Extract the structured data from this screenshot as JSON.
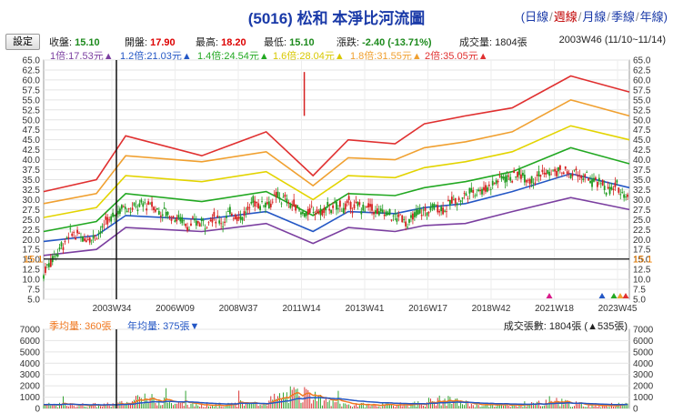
{
  "header": {
    "title": "(5016) 松和 本淨比河流圖",
    "periods": [
      "日線",
      "週線",
      "月線",
      "季線",
      "年線"
    ],
    "active_period": "週線",
    "settings_label": "設定"
  },
  "quote": {
    "open_label": "收盤:",
    "open_value": "15.10",
    "start_label": "開盤:",
    "start_value": "17.90",
    "high_label": "最高:",
    "high_value": "18.20",
    "low_label": "最低:",
    "low_value": "15.10",
    "change_label": "漲跌:",
    "change_value": "-2.40",
    "change_pct": "(-13.71%)",
    "volume_label": "成交量:",
    "volume_value": "1804張",
    "week_label": "2003W46 (11/10~11/14)"
  },
  "levels": [
    {
      "text": "1倍:17.53元▲",
      "color": "#7b3fa0"
    },
    {
      "text": "1.2倍:21.03元▲",
      "color": "#2457c5"
    },
    {
      "text": "1.4倍:24.54元▲",
      "color": "#22a822"
    },
    {
      "text": "1.6倍:28.04元▲",
      "color": "#e3d400"
    },
    {
      "text": "1.8倍:31.55元▲",
      "color": "#f0a030"
    },
    {
      "text": "2倍:35.05元▲",
      "color": "#e03030"
    }
  ],
  "volume_legend": {
    "avg_label": "季均量: 360張",
    "annual_label": "年均量: 375張▼",
    "right_label": "成交張數: 1804張 (▲535張)"
  },
  "chart_data": {
    "type": "line",
    "ylim": [
      5,
      65
    ],
    "y_ticks": [
      5,
      7.5,
      10,
      12.5,
      15,
      17.5,
      20,
      22.5,
      25,
      27.5,
      30,
      32.5,
      35,
      37.5,
      40,
      42.5,
      45,
      47.5,
      50,
      52.5,
      55,
      57.5,
      60,
      62.5,
      65
    ],
    "x_ticks": [
      "2003W34",
      "2006W09",
      "2008W37",
      "2011W14",
      "2013W41",
      "2016W17",
      "2018W42",
      "2021W18",
      "2023W45"
    ],
    "current_price": 15.1,
    "current_price_label": "15.1",
    "x": [
      0,
      0.09,
      0.14,
      0.27,
      0.38,
      0.46,
      0.52,
      0.6,
      0.65,
      0.72,
      0.8,
      0.9,
      1.0
    ],
    "series": [
      {
        "name": "1倍",
        "color": "#7b3fa0",
        "values": [
          16,
          17.5,
          23,
          22,
          24,
          19,
          23,
          22,
          23.5,
          24,
          27,
          30.5,
          27.5
        ]
      },
      {
        "name": "1.2倍",
        "color": "#2457c5",
        "values": [
          19.5,
          21,
          26,
          25,
          27,
          22,
          27,
          26.5,
          28,
          29,
          32,
          36.5,
          33
        ]
      },
      {
        "name": "1.4倍",
        "color": "#22a822",
        "values": [
          22,
          24.5,
          31.5,
          29.5,
          32,
          26,
          31.5,
          31,
          33,
          34.5,
          37,
          43,
          39
        ]
      },
      {
        "name": "1.6倍",
        "color": "#e3d400",
        "values": [
          25.5,
          28,
          36,
          34.5,
          37,
          30,
          36,
          35.5,
          38,
          39.5,
          42,
          48.5,
          45
        ]
      },
      {
        "name": "1.8倍",
        "color": "#f0a030",
        "values": [
          29,
          31.5,
          41,
          39.5,
          42,
          33.5,
          40.5,
          40,
          43,
          44.5,
          47,
          55,
          51
        ]
      },
      {
        "name": "2倍",
        "color": "#e03030",
        "values": [
          32,
          35,
          46,
          41,
          47,
          36,
          45,
          44,
          49,
          51,
          53,
          61,
          57
        ]
      }
    ],
    "volume": {
      "ylim": [
        0,
        7000
      ],
      "y_ticks": [
        0,
        1000,
        2000,
        3000,
        4000,
        5000,
        6000,
        7000
      ]
    }
  }
}
